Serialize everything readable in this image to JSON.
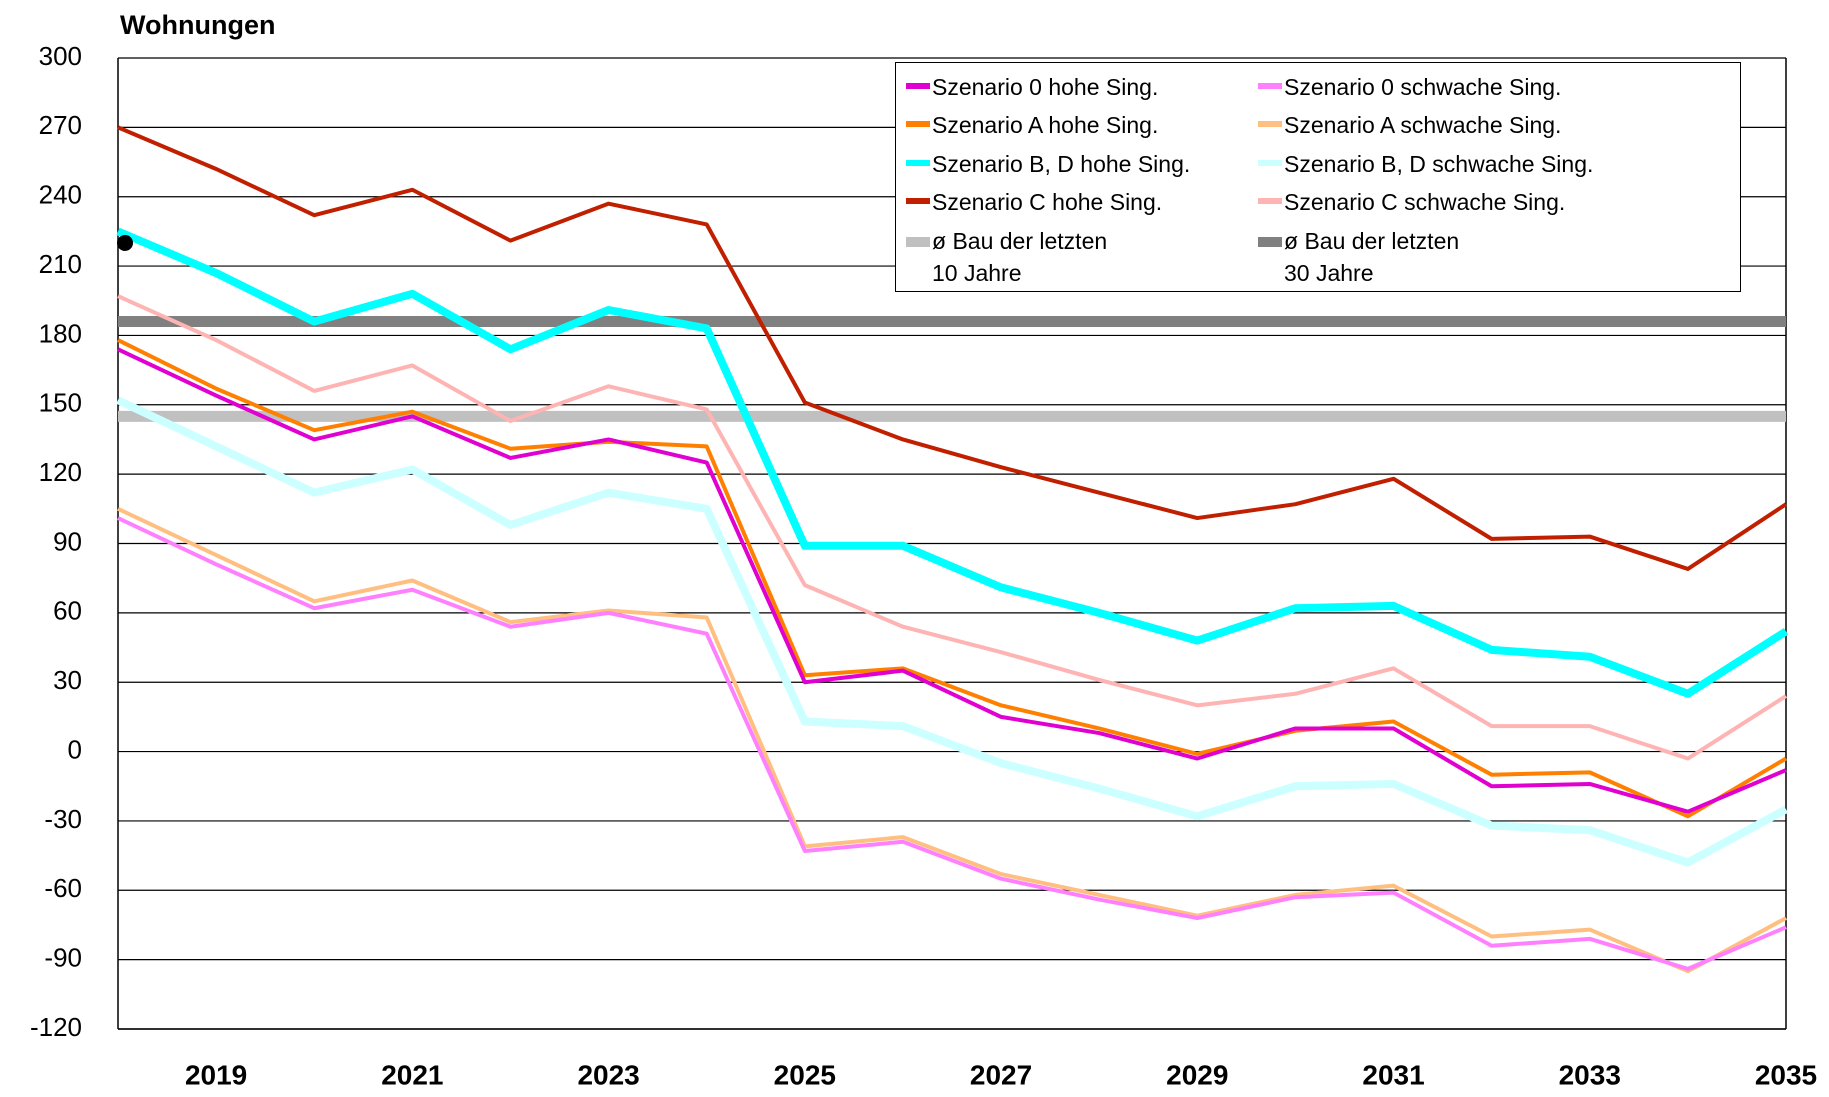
{
  "chart_data": {
    "type": "line",
    "y_label": "Wohnungen",
    "x": [
      2018,
      2019,
      2020,
      2021,
      2022,
      2023,
      2024,
      2025,
      2026,
      2027,
      2028,
      2029,
      2030,
      2031,
      2032,
      2033,
      2034,
      2035
    ],
    "xlim": [
      2018,
      2035
    ],
    "xticks": [
      2019,
      2021,
      2023,
      2025,
      2027,
      2029,
      2031,
      2033,
      2035
    ],
    "ylim": [
      -120,
      300
    ],
    "yticks": [
      -120,
      -90,
      -60,
      -30,
      0,
      30,
      60,
      90,
      120,
      150,
      180,
      210,
      240,
      270,
      300
    ],
    "grid": true,
    "legend": "top-right",
    "series": [
      {
        "name": "Szenario 0 hohe Sing.",
        "color": "#e000d0",
        "line_width": 4,
        "values": [
          174,
          154,
          135,
          145,
          127,
          135,
          125,
          30,
          35,
          15,
          8,
          -3,
          10,
          10,
          -15,
          -14,
          -26,
          -8
        ]
      },
      {
        "name": "Szenario 0 schwache Sing.",
        "color": "#ff80ff",
        "line_width": 4,
        "values": [
          101,
          81,
          62,
          70,
          54,
          60,
          51,
          -43,
          -39,
          -55,
          -64,
          -72,
          -63,
          -61,
          -84,
          -81,
          -94,
          -76
        ]
      },
      {
        "name": "Szenario A hohe Sing.",
        "color": "#ff8000",
        "line_width": 4,
        "values": [
          178,
          157,
          139,
          147,
          131,
          134,
          132,
          33,
          36,
          20,
          10,
          -1,
          9,
          13,
          -10,
          -9,
          -28,
          -3
        ]
      },
      {
        "name": "Szenario A schwache Sing.",
        "color": "#ffbf80",
        "line_width": 4,
        "values": [
          105,
          85,
          65,
          74,
          56,
          61,
          58,
          -41,
          -37,
          -53,
          -62,
          -71,
          -62,
          -58,
          -80,
          -77,
          -95,
          -72
        ]
      },
      {
        "name": "Szenario B, D hohe Sing.",
        "color": "#00ffff",
        "line_width": 8,
        "values": [
          225,
          207,
          186,
          198,
          174,
          191,
          183,
          89,
          89,
          71,
          60,
          48,
          62,
          63,
          44,
          41,
          25,
          52
        ]
      },
      {
        "name": "Szenario B, D schwache Sing.",
        "color": "#ccffff",
        "line_width": 8,
        "values": [
          152,
          132,
          112,
          122,
          98,
          112,
          105,
          13,
          11,
          -5,
          -16,
          -28,
          -15,
          -14,
          -32,
          -34,
          -48,
          -25
        ]
      },
      {
        "name": "Szenario C hohe Sing.",
        "color": "#c02000",
        "line_width": 4,
        "values": [
          270,
          252,
          232,
          243,
          221,
          237,
          228,
          151,
          135,
          123,
          112,
          101,
          107,
          118,
          92,
          93,
          79,
          107
        ]
      },
      {
        "name": "Szenario C schwache Sing.",
        "color": "#ffb4b4",
        "line_width": 4,
        "values": [
          197,
          178,
          156,
          167,
          143,
          158,
          148,
          72,
          54,
          43,
          31,
          20,
          25,
          36,
          11,
          11,
          -3,
          24
        ]
      }
    ],
    "reference_lines": [
      {
        "name": "ø Bau der letzten\n10 Jahre",
        "color": "#c0c0c0",
        "value": 145
      },
      {
        "name": "ø Bau der letzten\n30 Jahre",
        "color": "#808080",
        "value": 186
      }
    ],
    "marker": {
      "x": 2018,
      "y": 220,
      "color": "#000000"
    }
  }
}
